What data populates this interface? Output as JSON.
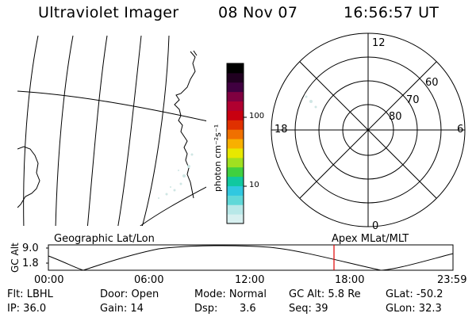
{
  "header": {
    "title": "Ultraviolet Imager",
    "date": "08 Nov 07",
    "time": "16:56:57 UT"
  },
  "colorbar": {
    "label": "photon cm⁻²s⁻¹",
    "ticks": [
      "100",
      "10"
    ],
    "colors": [
      "#d8f0f0",
      "#b8e8e8",
      "#60d8d8",
      "#30c8e0",
      "#10c8a0",
      "#40d040",
      "#a0e020",
      "#e8e800",
      "#f8b000",
      "#f07000",
      "#e03000",
      "#c80010",
      "#b00030",
      "#800040",
      "#400040",
      "#200020",
      "#000000"
    ]
  },
  "polar": {
    "labels": {
      "mlt_12": "12",
      "mlt_18": "18",
      "mlt_6": "6",
      "mlt_0": "0",
      "lat_60": "60",
      "lat_70": "70",
      "lat_80": "80"
    }
  },
  "panel_labels": {
    "geo": "Geographic Lat/Lon",
    "apex": "Apex MLat/MLT"
  },
  "timeline": {
    "ylabel": "GC Alt",
    "y_ticks": [
      "9.0",
      "1.8"
    ],
    "x_ticks": [
      "00:00",
      "06:00",
      "12:00",
      "18:00",
      "23:59"
    ],
    "current_time_marker": "16:56:57"
  },
  "info": {
    "flt": "Flt: LBHL",
    "door": "Door: Open",
    "mode": "Mode: Normal",
    "gc_alt": "GC Alt: 5.8 Re",
    "glat": "GLat: -50.2",
    "ip": "IP: 36.0",
    "gain": "Gain: 14",
    "dsp_label": "Dsp:",
    "dsp_value": "3.6",
    "seq": "Seq: 39",
    "glon": "GLon: 32.3"
  }
}
